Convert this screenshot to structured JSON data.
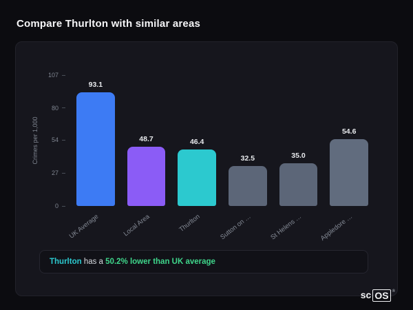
{
  "page": {
    "title": "Compare Thurlton with similar areas",
    "logo": {
      "prefix": "sc",
      "boxed": "OS",
      "registered": "®"
    }
  },
  "chart_data": {
    "type": "bar",
    "title": "",
    "xlabel": "",
    "ylabel": "Crimes per 1,000",
    "ylim": [
      0,
      107
    ],
    "yticks": [
      0,
      27,
      54,
      80,
      107
    ],
    "grid": false,
    "legend": null,
    "categories": [
      "UK Average",
      "Local Area",
      "Thurlton",
      "Sutton on …",
      "St Helens …",
      "Appledore …"
    ],
    "values": [
      93.1,
      48.7,
      46.4,
      32.5,
      35.0,
      54.6
    ],
    "value_labels": [
      "93.1",
      "48.7",
      "46.4",
      "32.5",
      "35.0",
      "54.6"
    ],
    "bar_colors": [
      "#3d7bf4",
      "#8b5cf6",
      "#2cc9cf",
      "#5c6678",
      "#5c6678",
      "#616c7e"
    ]
  },
  "note": {
    "area": "Thurlton",
    "middle": " has a ",
    "highlight": "50.2% lower than UK average",
    "area_color": "#2cc9cf",
    "highlight_color": "#3fd68b"
  }
}
